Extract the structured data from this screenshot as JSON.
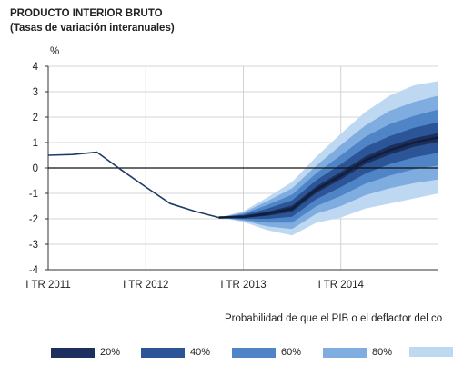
{
  "chart_data": {
    "type": "area",
    "title": "PRODUCTO INTERIOR BRUTO",
    "subtitle": "(Tasas de variación interanuales)",
    "ylabel": "%",
    "ylim": [
      -4,
      4
    ],
    "yticks": [
      4,
      3,
      2,
      1,
      0,
      -1,
      -2,
      -3,
      -4
    ],
    "xlim": [
      0,
      16
    ],
    "xticks": [
      {
        "x": 0,
        "label": "I TR 2011"
      },
      {
        "x": 4,
        "label": "I TR 2012"
      },
      {
        "x": 8,
        "label": "I TR 2013"
      },
      {
        "x": 12,
        "label": "I TR 2014"
      }
    ],
    "grid": true,
    "series": [
      {
        "x": [
          0,
          1,
          2,
          3,
          4,
          5,
          6,
          7,
          8
        ],
        "values": [
          0.5,
          0.53,
          0.62,
          -0.08,
          -0.75,
          -1.4,
          -1.7,
          -1.95,
          -1.92
        ]
      }
    ],
    "fan": {
      "x": [
        7,
        8,
        9,
        10,
        11,
        12,
        13,
        14,
        15,
        16
      ],
      "central": [
        -1.95,
        -1.92,
        -1.8,
        -1.6,
        -0.85,
        -0.3,
        0.3,
        0.7,
        1.0,
        1.2
      ],
      "bands": [
        {
          "label": "20%",
          "color": "#1c2f5e",
          "upper": [
            -1.95,
            -1.88,
            -1.72,
            -1.48,
            -0.72,
            -0.15,
            0.45,
            0.87,
            1.17,
            1.37
          ],
          "lower": [
            -1.95,
            -1.96,
            -1.88,
            -1.72,
            -0.98,
            -0.45,
            0.15,
            0.53,
            0.83,
            1.03
          ]
        },
        {
          "label": "40%",
          "color": "#2b5597",
          "upper": [
            -1.95,
            -1.84,
            -1.6,
            -1.28,
            -0.48,
            0.15,
            0.82,
            1.25,
            1.58,
            1.8
          ],
          "lower": [
            -1.95,
            -2.0,
            -2.0,
            -1.92,
            -1.22,
            -0.75,
            -0.22,
            0.15,
            0.42,
            0.6
          ]
        },
        {
          "label": "60%",
          "color": "#4f84c7",
          "upper": [
            -1.95,
            -1.8,
            -1.45,
            -1.05,
            -0.2,
            0.5,
            1.22,
            1.72,
            2.05,
            2.3
          ],
          "lower": [
            -1.95,
            -2.04,
            -2.15,
            -2.15,
            -1.5,
            -1.1,
            -0.62,
            -0.3,
            -0.05,
            0.1
          ]
        },
        {
          "label": "80%",
          "color": "#80ade0",
          "upper": [
            -1.95,
            -1.75,
            -1.3,
            -0.8,
            0.1,
            0.9,
            1.67,
            2.25,
            2.6,
            2.85
          ],
          "lower": [
            -1.95,
            -2.08,
            -2.3,
            -2.4,
            -1.8,
            -1.5,
            -1.07,
            -0.8,
            -0.6,
            -0.45
          ]
        },
        {
          "label": "",
          "color": "#bfd8f2",
          "upper": [
            -1.95,
            -1.7,
            -1.15,
            -0.55,
            0.45,
            1.35,
            2.2,
            2.85,
            3.25,
            3.42
          ],
          "lower": [
            -1.95,
            -2.12,
            -2.45,
            -2.65,
            -2.15,
            -1.95,
            -1.6,
            -1.4,
            -1.2,
            -1.0
          ]
        }
      ]
    },
    "annotation": "Probabilidad de que el PIB o el deflactor del co"
  }
}
